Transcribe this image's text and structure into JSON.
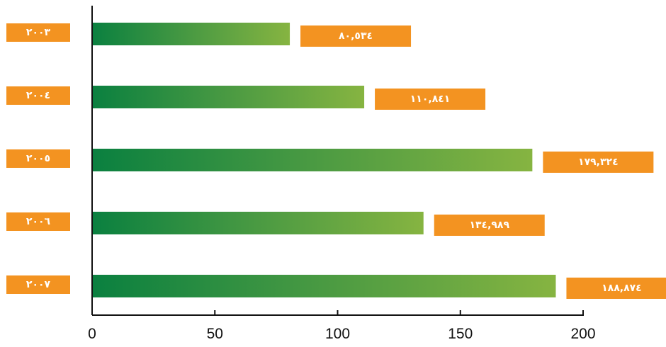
{
  "chart_data": {
    "type": "bar",
    "orientation": "horizontal",
    "categories": [
      "٢٠٠٣",
      "٢٠٠٤",
      "٢٠٠٥",
      "٢٠٠٦",
      "٢٠٠٧"
    ],
    "values": [
      80.534,
      110.841,
      179.324,
      134.989,
      188.874
    ],
    "value_labels": [
      "٨٠,٥٣٤",
      "١١٠,٨٤١",
      "١٧٩,٣٢٤",
      "١٣٤,٩٨٩",
      "١٨٨,٨٧٤"
    ],
    "x_ticks": [
      0,
      50,
      100,
      150,
      200
    ],
    "x_tick_labels": [
      "0",
      "50",
      "100",
      "150",
      "200"
    ],
    "xlim": [
      0,
      200
    ],
    "grid": false,
    "legend": "none",
    "colors": {
      "bar_start": "#0a8040",
      "bar_mid": "#4a9a42",
      "bar_end": "#86b441",
      "label_box": "#f39321",
      "label_text": "#ffffff",
      "axis": "#111111"
    }
  }
}
